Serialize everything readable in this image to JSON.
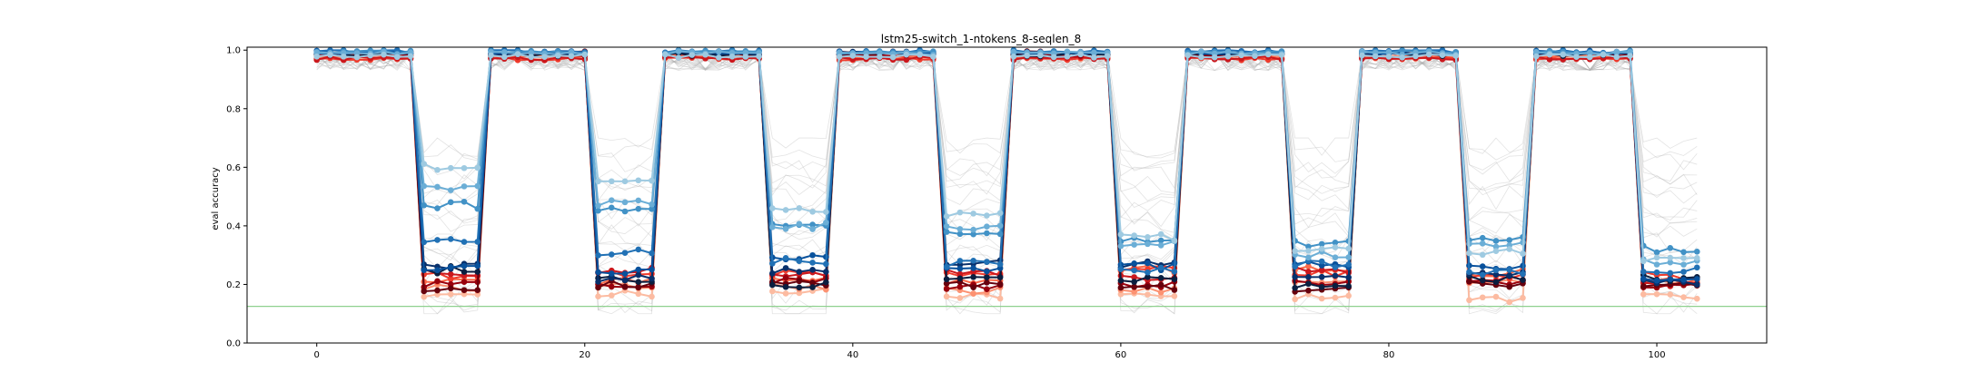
{
  "chart_data": {
    "type": "line",
    "title": "lstm25-switch_1-ntokens_8-seqlen_8",
    "xlabel": "",
    "ylabel": "eval accuracy",
    "xlim": [
      -5.2,
      108.2
    ],
    "ylim": [
      0.0,
      1.01
    ],
    "xticks": [
      0,
      20,
      40,
      60,
      80,
      100
    ],
    "yticks": [
      0.0,
      0.2,
      0.4,
      0.6,
      0.8,
      1.0
    ],
    "xtick_labels": [
      "0",
      "20",
      "40",
      "60",
      "80",
      "100"
    ],
    "ytick_labels": [
      "0.0",
      "0.2",
      "0.4",
      "0.6",
      "0.8",
      "1.0"
    ],
    "grid": false,
    "legend": "none",
    "baseline": {
      "y": 0.125,
      "color": "#8fd18f"
    },
    "phase_period": 13,
    "high_phase_length": 8,
    "num_points": 104,
    "background_series": {
      "count": 24,
      "color": "#b0b0b0",
      "high_range": [
        0.93,
        1.0
      ],
      "low_range": [
        0.1,
        0.7
      ]
    },
    "series": [
      {
        "color": "#fcbba1",
        "high": 0.975,
        "low": [
          0.17,
          0.17,
          0.18,
          0.16,
          0.16,
          0.16,
          0.15,
          0.16
        ]
      },
      {
        "color": "#fc9272",
        "high": 0.98,
        "low": [
          0.19,
          0.19,
          0.19,
          0.18,
          0.18,
          0.2,
          0.21,
          0.21
        ]
      },
      {
        "color": "#fb6a4a",
        "high": 0.978,
        "low": [
          0.21,
          0.21,
          0.22,
          0.21,
          0.25,
          0.25,
          0.24,
          0.21
        ]
      },
      {
        "color": "#ef3b2c",
        "high": 0.97,
        "low": [
          0.23,
          0.24,
          0.24,
          0.24,
          0.26,
          0.24,
          0.23,
          0.23
        ]
      },
      {
        "color": "#cb181d",
        "high": 0.972,
        "low": [
          0.24,
          0.25,
          0.23,
          0.24,
          0.22,
          0.25,
          0.22,
          0.2
        ]
      },
      {
        "color": "#99000d",
        "high": 0.985,
        "low": [
          0.2,
          0.2,
          0.21,
          0.19,
          0.2,
          0.21,
          0.2,
          0.19
        ]
      },
      {
        "color": "#67000d",
        "high": 0.99,
        "low": [
          0.18,
          0.2,
          0.2,
          0.2,
          0.19,
          0.18,
          0.2,
          0.2
        ]
      },
      {
        "color": "#0b1f40",
        "high": 0.985,
        "low": [
          0.25,
          0.22,
          0.2,
          0.23,
          0.22,
          0.2,
          0.22,
          0.22
        ]
      },
      {
        "color": "#08306b",
        "high": 0.99,
        "low": [
          0.26,
          0.22,
          0.25,
          0.27,
          0.27,
          0.22,
          0.23,
          0.21
        ]
      },
      {
        "color": "#08519c",
        "high": 0.992,
        "low": [
          0.26,
          0.24,
          0.29,
          0.25,
          0.26,
          0.27,
          0.26,
          0.22
        ]
      },
      {
        "color": "#2171b5",
        "high": 0.995,
        "low": [
          0.35,
          0.31,
          0.28,
          0.27,
          0.25,
          0.27,
          0.24,
          0.25
        ]
      },
      {
        "color": "#4292c6",
        "high": 0.993,
        "low": [
          0.47,
          0.45,
          0.4,
          0.38,
          0.35,
          0.34,
          0.35,
          0.32
        ]
      },
      {
        "color": "#6baed6",
        "high": 0.99,
        "low": [
          0.53,
          0.48,
          0.4,
          0.39,
          0.34,
          0.3,
          0.34,
          0.28
        ]
      },
      {
        "color": "#9ecae1",
        "high": 0.98,
        "low": [
          0.6,
          0.55,
          0.45,
          0.44,
          0.36,
          0.32,
          0.31,
          0.28
        ]
      }
    ]
  }
}
